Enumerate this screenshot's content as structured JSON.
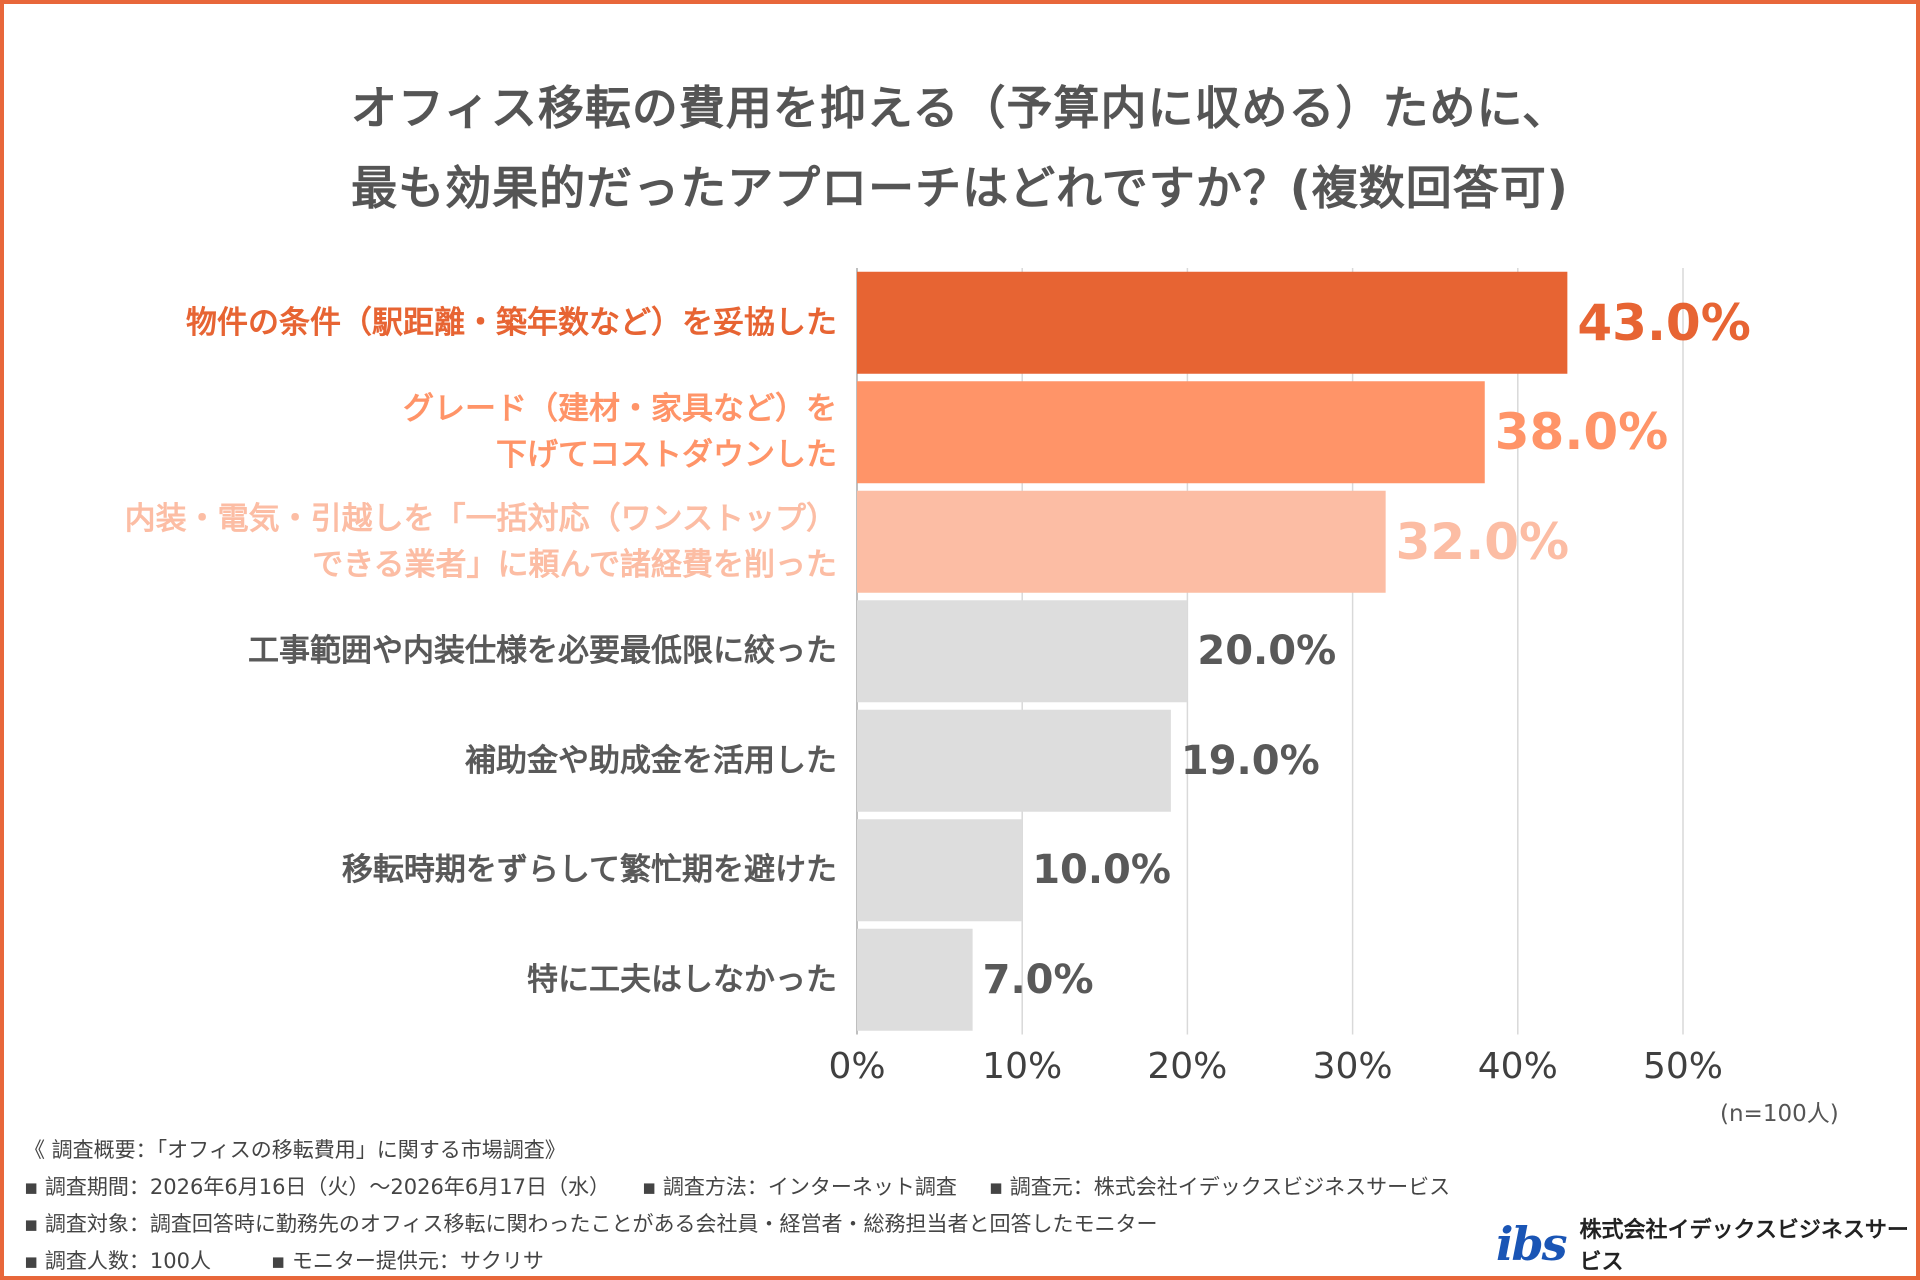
{
  "title_lines": [
    "オフィス移転の費用を抑える（予算内に収める）ために、",
    "最も効果的だったアプローチはどれですか？(複数回答可)"
  ],
  "chart_data": {
    "type": "bar",
    "orientation": "horizontal",
    "categories": [
      [
        "物件の条件（駅距離・築年数など）を妥協した"
      ],
      [
        "グレード（建材・家具など）を",
        "下げてコストダウンした"
      ],
      [
        "内装・電気・引越しを「一括対応（ワンストップ）",
        "できる業者」に頼んで諸経費を削った"
      ],
      [
        "工事範囲や内装仕様を必要最低限に絞った"
      ],
      [
        "補助金や助成金を活用した"
      ],
      [
        "移転時期をずらして繁忙期を避けた"
      ],
      [
        "特に工夫はしなかった"
      ]
    ],
    "values": [
      43.0,
      38.0,
      32.0,
      20.0,
      19.0,
      10.0,
      7.0
    ],
    "value_labels": [
      "43.0%",
      "38.0%",
      "32.0%",
      "20.0%",
      "19.0%",
      "10.0%",
      "7.0%"
    ],
    "bar_colors": [
      "#e76433",
      "#ff9468",
      "#fcbda4",
      "#dddddd",
      "#dddddd",
      "#dddddd",
      "#dddddd"
    ],
    "label_colors": [
      "#e76433",
      "#ff9468",
      "#fcbda4",
      "#595959",
      "#595959",
      "#595959",
      "#595959"
    ],
    "xlim": [
      0,
      50
    ],
    "x_ticks": [
      "0%",
      "10%",
      "20%",
      "30%",
      "40%",
      "50%"
    ],
    "grid": true,
    "sample_size_label": "(n=100人)"
  },
  "survey_notes": [
    [
      "《 調査概要：「オフィスの移転費用」に関する市場調査》"
    ],
    [
      "▪ 調査期間：2026年6月16日（火）～2026年6月17日（水）",
      "▪ 調査方法：インターネット調査",
      "▪ 調査元：株式会社イデックスビジネスサービス"
    ],
    [
      "▪ 調査対象：調査回答時に勤務先のオフィス移転に関わったことがある会社員・経営者・総務担当者と回答したモニター"
    ],
    [
      "▪ 調査人数：100人",
      "▪ モニター提供元：サクリサ"
    ]
  ],
  "logo": {
    "mark": "ibs",
    "company_name": "株式会社イデックスビジネスサービス",
    "color": "#1a55b5"
  }
}
